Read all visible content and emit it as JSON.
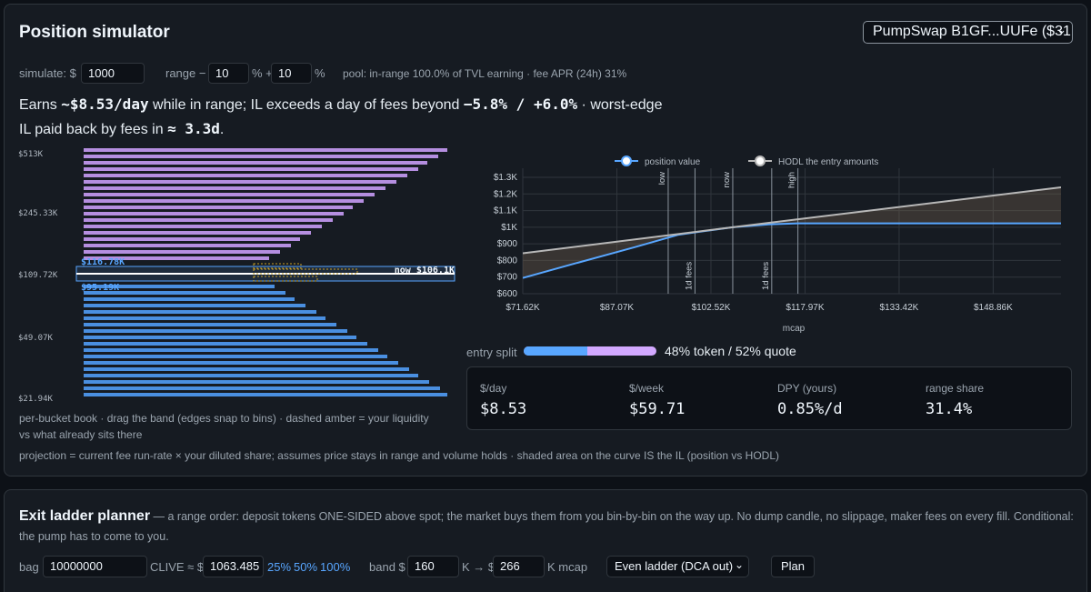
{
  "sim": {
    "title": "Position simulator",
    "pool_select": "PumpSwap B1GF...UUFe ($31",
    "simulate_label": "simulate: $",
    "simulate_value": "1000",
    "range_label": "range −",
    "range_low": "10",
    "range_mid": "% +",
    "range_high": "10",
    "range_end": "%",
    "pool_info": "pool: in-range 100.0% of TVL earning · fee APR (24h) 31%",
    "earns_1": "Earns ",
    "earns_amount": "~$8.53/day",
    "earns_2": " while in range; IL exceeds a day of fees beyond ",
    "earns_band": "−5.8% / +6.0%",
    "earns_3": " · worst-edge",
    "payback_1": "IL paid back by fees in ",
    "payback_value": "≈ 3.3d",
    "payback_2": ".",
    "book": {
      "y_labels": [
        "$513K",
        "$245.33K",
        "$109.72K",
        "$49.07K",
        "$21.94K"
      ],
      "band_top_label": "$116.78K",
      "band_bottom_label": "$95.19K",
      "now_label": "now $106.1K",
      "upper_bar_lengths": [
        400,
        390,
        378,
        368,
        356,
        344,
        332,
        320,
        308,
        296,
        286,
        274,
        262,
        250,
        238,
        228,
        216,
        204
      ],
      "lower_bar_lengths": [
        210,
        222,
        232,
        244,
        256,
        266,
        278,
        290,
        300,
        312,
        324,
        334,
        346,
        358,
        368,
        380,
        392,
        400
      ],
      "upper_color": "#b58ee0",
      "lower_color": "#4a8fe0",
      "caption_1": "per-bucket book · drag the band (edges snap to bins) · dashed amber = your liquidity",
      "caption_2": "vs what already sits there"
    },
    "projection_note": "projection = current fee run-rate × your diluted share; assumes price stays in range and volume holds · shaded area on the curve IS the IL (position vs HODL)"
  },
  "chart_data": {
    "type": "line",
    "xlabel": "mcap",
    "ylabel": "",
    "x_ticks": [
      "$71.62K",
      "$87.07K",
      "$102.52K",
      "$117.97K",
      "$133.42K",
      "$148.86K"
    ],
    "x_tick_values": [
      71.62,
      87.07,
      102.52,
      117.97,
      133.42,
      148.86
    ],
    "y_ticks": [
      "$1.3K",
      "$1.2K",
      "$1.1K",
      "$1K",
      "$900",
      "$800",
      "$700",
      "$600"
    ],
    "y_tick_values": [
      1300,
      1200,
      1100,
      1000,
      900,
      800,
      700,
      600
    ],
    "xlim": [
      71.62,
      160
    ],
    "ylim": [
      600,
      1350
    ],
    "legend_position": "top",
    "series": [
      {
        "name": "position value",
        "color": "#58a6ff",
        "x": [
          71.62,
          80,
          90,
          97.2,
          106.1,
          112,
          116.8,
          130,
          145,
          160
        ],
        "values": [
          695,
          780,
          880,
          955,
          1000,
          1017,
          1023,
          1023,
          1023,
          1023
        ]
      },
      {
        "name": "HODL the entry amounts",
        "color": "#b8b8b8",
        "x": [
          71.62,
          106.1,
          160
        ],
        "values": [
          843,
          1000,
          1240
        ]
      }
    ],
    "vlines": [
      {
        "label": "low",
        "x": 95.5
      },
      {
        "label": "1d fees",
        "x": 99.9
      },
      {
        "label": "now",
        "x": 106.1
      },
      {
        "label": "1d fees",
        "x": 112.5
      },
      {
        "label": "high",
        "x": 116.8
      }
    ]
  },
  "split": {
    "label": "entry split",
    "token_pct": 0.48,
    "token_color": "#58a6ff",
    "quote_color": "#d2a8ff",
    "text": "48% token / 52% quote"
  },
  "stats": [
    {
      "label": "$/day",
      "value": "$8.53"
    },
    {
      "label": "$/week",
      "value": "$59.71"
    },
    {
      "label": "DPY (yours)",
      "value": "0.85%/d"
    },
    {
      "label": "range share",
      "value": "31.4%"
    }
  ],
  "exit": {
    "title": "Exit ladder planner",
    "desc_1": " — a range order: deposit tokens ONE-SIDED above spot; the market buys them from you bin-by-bin on the way up. No dump candle, no slippage, maker fees on every fill. Conditional:",
    "desc_2": "the pump has to come to you.",
    "bag_label": "bag",
    "bag_value": "10000000",
    "token_label": "CLIVE ≈ $",
    "usd_value": "1063.485",
    "pct_25": "25%",
    "pct_50": "50%",
    "pct_100": "100%",
    "band_label": "band $",
    "band_low": "160",
    "band_arrow": "K → $",
    "band_high": "266",
    "band_end": "K mcap",
    "ladder_select": "Even ladder (DCA out)",
    "plan_button": "Plan"
  }
}
